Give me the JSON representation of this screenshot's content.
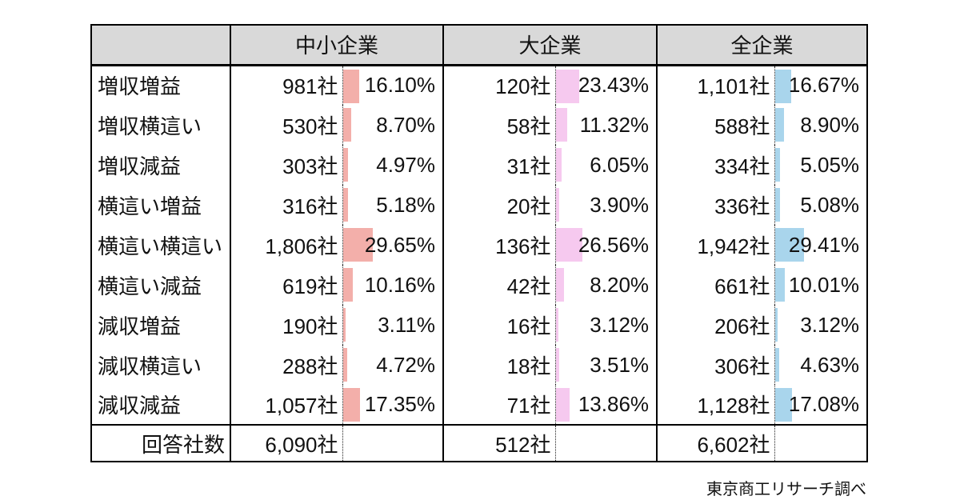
{
  "column_groups": [
    {
      "label": "中小企業",
      "bar_color": "#f3afaa"
    },
    {
      "label": "大企業",
      "bar_color": "#f6c9ef"
    },
    {
      "label": "全企業",
      "bar_color": "#a9d5ec"
    }
  ],
  "rows": [
    {
      "label": "増収増益",
      "cells": [
        {
          "count": "981社",
          "pct": "16.10%"
        },
        {
          "count": "120社",
          "pct": "23.43%"
        },
        {
          "count": "1,101社",
          "pct": "16.67%"
        }
      ]
    },
    {
      "label": "増収横這い",
      "cells": [
        {
          "count": "530社",
          "pct": "8.70%"
        },
        {
          "count": "58社",
          "pct": "11.32%"
        },
        {
          "count": "588社",
          "pct": "8.90%"
        }
      ]
    },
    {
      "label": "増収減益",
      "cells": [
        {
          "count": "303社",
          "pct": "4.97%"
        },
        {
          "count": "31社",
          "pct": "6.05%"
        },
        {
          "count": "334社",
          "pct": "5.05%"
        }
      ]
    },
    {
      "label": "横這い増益",
      "cells": [
        {
          "count": "316社",
          "pct": "5.18%"
        },
        {
          "count": "20社",
          "pct": "3.90%"
        },
        {
          "count": "336社",
          "pct": "5.08%"
        }
      ]
    },
    {
      "label": "横這い横這い",
      "cells": [
        {
          "count": "1,806社",
          "pct": "29.65%"
        },
        {
          "count": "136社",
          "pct": "26.56%"
        },
        {
          "count": "1,942社",
          "pct": "29.41%"
        }
      ]
    },
    {
      "label": "横這い減益",
      "cells": [
        {
          "count": "619社",
          "pct": "10.16%"
        },
        {
          "count": "42社",
          "pct": "8.20%"
        },
        {
          "count": "661社",
          "pct": "10.01%"
        }
      ]
    },
    {
      "label": "減収増益",
      "cells": [
        {
          "count": "190社",
          "pct": "3.11%"
        },
        {
          "count": "16社",
          "pct": "3.12%"
        },
        {
          "count": "206社",
          "pct": "3.12%"
        }
      ]
    },
    {
      "label": "減収横這い",
      "cells": [
        {
          "count": "288社",
          "pct": "4.72%"
        },
        {
          "count": "18社",
          "pct": "3.51%"
        },
        {
          "count": "306社",
          "pct": "4.63%"
        }
      ]
    },
    {
      "label": "減収減益",
      "cells": [
        {
          "count": "1,057社",
          "pct": "17.35%"
        },
        {
          "count": "71社",
          "pct": "13.86%"
        },
        {
          "count": "1,128社",
          "pct": "17.08%"
        }
      ]
    }
  ],
  "total_row": {
    "label": "回答社数",
    "counts": [
      "6,090社",
      "512社",
      "6,602社"
    ]
  },
  "source_note": "東京商工リサーチ調べ",
  "colors": {
    "header_bg": "#d9d9d9",
    "border": "#000000",
    "bar_sme": "#f3afaa",
    "bar_large": "#f6c9ef",
    "bar_all": "#a9d5ec"
  },
  "chart_data": {
    "type": "table",
    "title": "",
    "categories": [
      "増収増益",
      "増収横這い",
      "増収減益",
      "横這い増益",
      "横這い横這い",
      "横這い減益",
      "減収増益",
      "減収横這い",
      "減収減益"
    ],
    "series": [
      {
        "name": "中小企業",
        "counts": [
          981,
          530,
          303,
          316,
          1806,
          619,
          190,
          288,
          1057
        ],
        "percents": [
          16.1,
          8.7,
          4.97,
          5.18,
          29.65,
          10.16,
          3.11,
          4.72,
          17.35
        ],
        "total_label": "回答社数",
        "total_count": 6090
      },
      {
        "name": "大企業",
        "counts": [
          120,
          58,
          31,
          20,
          136,
          42,
          16,
          18,
          71
        ],
        "percents": [
          23.43,
          11.32,
          6.05,
          3.9,
          26.56,
          8.2,
          3.12,
          3.51,
          13.86
        ],
        "total_label": "回答社数",
        "total_count": 512
      },
      {
        "name": "全企業",
        "counts": [
          1101,
          588,
          334,
          336,
          1942,
          661,
          206,
          306,
          1128
        ],
        "percents": [
          16.67,
          8.9,
          5.05,
          5.08,
          29.41,
          10.01,
          3.12,
          4.63,
          17.08
        ],
        "total_label": "回答社数",
        "total_count": 6602
      }
    ],
    "unit_count": "社",
    "unit_percent": "%",
    "annotations": [
      "東京商工リサーチ調べ"
    ],
    "layout": {
      "bar_style": "in-cell horizontal",
      "legend": "none",
      "grid": "off"
    }
  }
}
